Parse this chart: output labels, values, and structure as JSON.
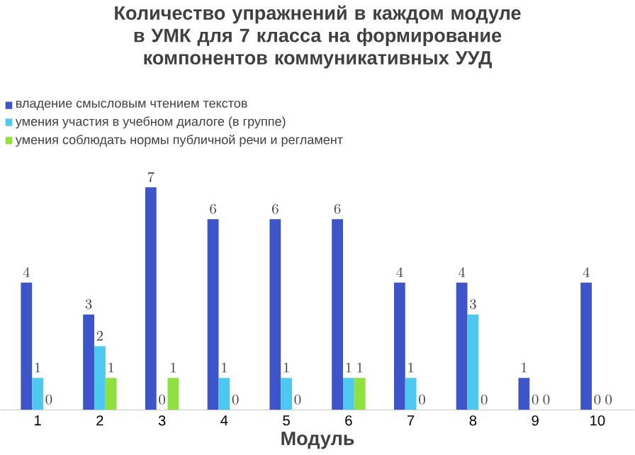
{
  "chart_data": {
    "type": "bar",
    "title": "Количество упражнений в каждом модуле в УМК для 7 класса на формирование компонентов коммуникативных УУД",
    "xlabel": "Модуль",
    "categories": [
      "1",
      "2",
      "3",
      "4",
      "5",
      "6",
      "7",
      "8",
      "9",
      "10"
    ],
    "series": [
      {
        "name": "владение смысловым чтением текстов",
        "color": "#3d55c8",
        "values": [
          4,
          3,
          7,
          6,
          6,
          6,
          4,
          4,
          1,
          4
        ]
      },
      {
        "name": "умения участия в учебном диалоге (в группе)",
        "color": "#4fc8f0",
        "values": [
          1,
          2,
          0,
          1,
          1,
          1,
          1,
          3,
          0,
          0
        ]
      },
      {
        "name": "умения соблюдать нормы публичной речи и регламент",
        "color": "#90e040",
        "values": [
          0,
          1,
          1,
          0,
          0,
          1,
          0,
          0,
          0,
          0
        ]
      }
    ],
    "data_labels": true,
    "legend": "top left"
  }
}
